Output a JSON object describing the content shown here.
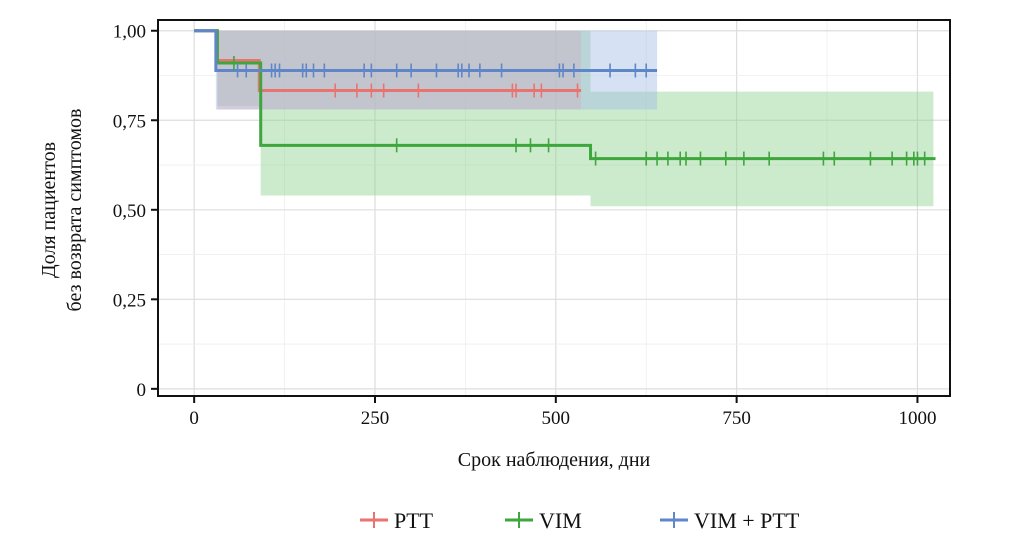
{
  "chart_data": {
    "type": "line",
    "subtype": "kaplan-meier",
    "title": "",
    "xlabel": "Срок наблюдения, дни",
    "ylabel_lines": [
      "Доля пациентов",
      "без возврата симптомов"
    ],
    "xlim": [
      -50,
      1045
    ],
    "ylim": [
      -0.02,
      1.03
    ],
    "x_ticks": [
      0,
      250,
      500,
      750,
      1000
    ],
    "x_tick_labels": [
      "0",
      "250",
      "500",
      "750",
      "1000"
    ],
    "y_ticks": [
      0,
      0.25,
      0.5,
      0.75,
      1.0
    ],
    "y_tick_labels": [
      "0",
      "0,25",
      "0,50",
      "0,75",
      "1,00"
    ],
    "grid": true,
    "legend_position": "bottom",
    "series": [
      {
        "name": "PTT",
        "color": "#e8736f",
        "band_color": "#f2a9a6",
        "steps": [
          [
            0,
            1.0
          ],
          [
            32,
            0.917
          ],
          [
            90,
            0.833
          ],
          [
            535,
            0.833
          ]
        ],
        "ci_band": [
          [
            32,
            0.78,
            1.0
          ],
          [
            90,
            0.78,
            1.0
          ],
          [
            535,
            0.78,
            1.0
          ]
        ],
        "censored": [
          195,
          225,
          245,
          262,
          310,
          440,
          445,
          470,
          480,
          530
        ]
      },
      {
        "name": "VIM",
        "color": "#3da63d",
        "band_color": "#8fd18f",
        "steps": [
          [
            0,
            1.0
          ],
          [
            32,
            0.91
          ],
          [
            92,
            0.68
          ],
          [
            548,
            0.643
          ],
          [
            1025,
            0.643
          ]
        ],
        "ci_band": [
          [
            32,
            0.79,
            1.0
          ],
          [
            92,
            0.54,
            1.0
          ],
          [
            548,
            0.51,
            0.83
          ],
          [
            1022,
            0.51,
            0.83
          ]
        ],
        "censored": [
          55,
          280,
          445,
          465,
          490,
          555,
          625,
          640,
          655,
          672,
          680,
          700,
          735,
          760,
          795,
          870,
          885,
          935,
          965,
          985,
          995,
          1000,
          1010
        ]
      },
      {
        "name": "VIM + PTT",
        "color": "#5e86c8",
        "band_color": "#a3bde6",
        "steps": [
          [
            0,
            1.0
          ],
          [
            30,
            0.889
          ],
          [
            640,
            0.889
          ]
        ],
        "ci_band": [
          [
            30,
            0.78,
            1.0
          ],
          [
            530,
            0.78,
            1.0
          ],
          [
            640,
            0.78,
            1.0
          ]
        ],
        "censored": [
          60,
          72,
          107,
          112,
          118,
          150,
          155,
          165,
          180,
          235,
          245,
          280,
          300,
          335,
          365,
          370,
          380,
          395,
          425,
          505,
          510,
          525,
          575,
          610,
          625
        ]
      }
    ]
  }
}
